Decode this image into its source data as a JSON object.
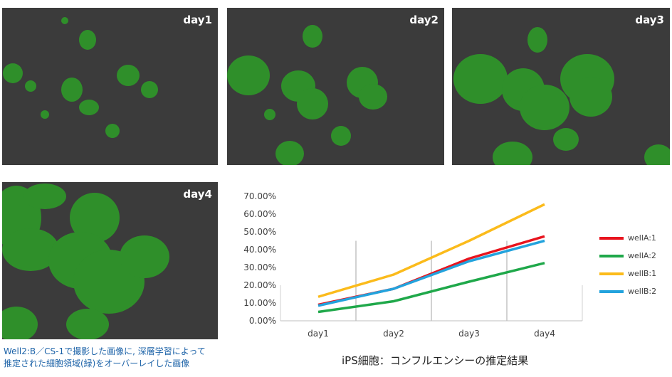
{
  "panels": [
    {
      "label": "day1"
    },
    {
      "label": "day2"
    },
    {
      "label": "day3"
    },
    {
      "label": "day4"
    }
  ],
  "caption": {
    "line1": "Well2:B／CS-1で撮影した画像に, 深層学習によって",
    "line2": "推定された細胞領域(緑)をオーバーレイした画像"
  },
  "colors": {
    "background": "#3b3b3b",
    "cell_overlay": "#2f8f2a",
    "caption_text": "#1d63a8"
  },
  "chart_data": {
    "type": "line",
    "title": "iPS細胞：コンフルエンシーの推定結果",
    "categories": [
      "day1",
      "day2",
      "day3",
      "day4"
    ],
    "ylim": [
      0,
      70
    ],
    "yticks": [
      "0.00%",
      "10.00%",
      "20.00%",
      "30.00%",
      "40.00%",
      "50.00%",
      "60.00%",
      "70.00%"
    ],
    "grid": "vertical",
    "legend_position": "right",
    "series": [
      {
        "name": "wellA:1",
        "color": "#e8141e",
        "values": [
          9,
          18,
          35,
          47.5
        ]
      },
      {
        "name": "wellA:2",
        "color": "#1fa84a",
        "values": [
          5,
          11,
          22,
          32.5
        ]
      },
      {
        "name": "wellB:1",
        "color": "#fbbb1b",
        "values": [
          13.5,
          26,
          45,
          65.5
        ]
      },
      {
        "name": "wellB:2",
        "color": "#23a3dd",
        "values": [
          8.5,
          18,
          33.5,
          45
        ]
      }
    ]
  }
}
